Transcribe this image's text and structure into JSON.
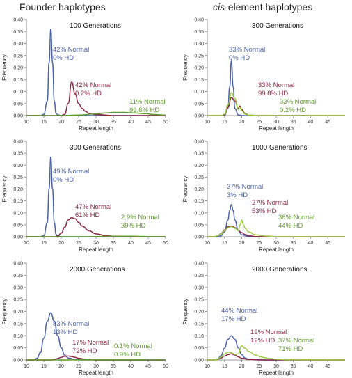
{
  "columns": {
    "left_title": "Founder haplotypes",
    "right_title_italic": "cis",
    "right_title_rest": "-element haplotypes"
  },
  "colors": {
    "blue": "#4a62a8",
    "red": "#8b2540",
    "green": "#5e9a2c",
    "light_green": "#9ccb44"
  },
  "chart_data": [
    {
      "type": "line",
      "title": "100 Generations",
      "xlabel": "Repeat length",
      "ylabel": "Frequency",
      "xlim": [
        10,
        50
      ],
      "ylim": [
        0,
        0.4
      ],
      "xticks": [
        10,
        15,
        20,
        25,
        30,
        35,
        40,
        45,
        50
      ],
      "yticks": [
        "0.00",
        "0.05",
        "0.10",
        "0.15",
        "0.20",
        "0.25",
        "0.30",
        "0.35",
        "0.40"
      ],
      "series": [
        {
          "color": "#4a62a8",
          "x": [
            10,
            14,
            15,
            16,
            16.5,
            17,
            17.5,
            18,
            18.5,
            19,
            20,
            25,
            50
          ],
          "y": [
            0,
            0,
            0.005,
            0.06,
            0.22,
            0.36,
            0.22,
            0.06,
            0.01,
            0.003,
            0,
            0,
            0
          ]
        },
        {
          "color": "#8b2540",
          "x": [
            10,
            20,
            21,
            22,
            23,
            24,
            25,
            26,
            27,
            28,
            30,
            35,
            50
          ],
          "y": [
            0,
            0,
            0.005,
            0.05,
            0.14,
            0.09,
            0.05,
            0.03,
            0.017,
            0.009,
            0.004,
            0,
            0
          ]
        },
        {
          "color": "#5e9a2c",
          "x": [
            10,
            20,
            25,
            30,
            33,
            35,
            38,
            41,
            44,
            47,
            50
          ],
          "y": [
            0,
            0,
            0.002,
            0.007,
            0.011,
            0.013,
            0.013,
            0.011,
            0.008,
            0.004,
            0.002
          ]
        }
      ],
      "annotations": [
        {
          "lines": [
            "42% Normal",
            "0% HD"
          ],
          "color": "#4a62a8"
        },
        {
          "lines": [
            "42% Normal",
            "0.2% HD"
          ],
          "color": "#8b2540"
        },
        {
          "lines": [
            "11% Normal",
            "99.8% HD"
          ],
          "color": "#5e9a2c"
        }
      ]
    },
    {
      "type": "line",
      "title": "300 Generations",
      "xlabel": "Repeat length",
      "ylabel": "Frequency",
      "xlim": [
        10,
        50
      ],
      "ylim": [
        0,
        0.4
      ],
      "xticks": [
        10,
        15,
        20,
        25,
        30,
        35,
        40,
        45
      ],
      "yticks": [
        "0.00",
        "0.05",
        "0.10",
        "0.15",
        "0.20",
        "0.25",
        "0.30",
        "0.35",
        "0.40"
      ],
      "series": [
        {
          "color": "#4a62a8",
          "x": [
            10,
            14,
            15,
            16,
            16.5,
            17,
            17.5,
            18,
            19,
            20,
            25,
            50
          ],
          "y": [
            0,
            0,
            0.002,
            0.03,
            0.12,
            0.23,
            0.12,
            0.03,
            0.003,
            0,
            0,
            0
          ]
        },
        {
          "color": "#8b2540",
          "x": [
            10,
            14,
            15,
            16,
            17,
            18,
            19,
            19.5,
            20,
            21,
            22,
            25,
            50
          ],
          "y": [
            0,
            0,
            0.004,
            0.035,
            0.075,
            0.06,
            0.03,
            0.04,
            0.025,
            0.008,
            0.002,
            0,
            0
          ]
        },
        {
          "color": "#9ccb44",
          "x": [
            10,
            14,
            15,
            16,
            17,
            18,
            19,
            19.5,
            20,
            21,
            22,
            25,
            50
          ],
          "y": [
            0,
            0,
            0.006,
            0.045,
            0.095,
            0.07,
            0.025,
            0.035,
            0.02,
            0.006,
            0.002,
            0,
            0
          ]
        }
      ],
      "annotations": [
        {
          "lines": [
            "33% Normal",
            "0% HD"
          ],
          "color": "#4a62a8"
        },
        {
          "lines": [
            "33% Normal",
            "99.8% HD"
          ],
          "color": "#8b2540"
        },
        {
          "lines": [
            "33% Normal",
            "0.2% HD"
          ],
          "color": "#5e9a2c"
        }
      ]
    },
    {
      "type": "line",
      "title": "300 Generations",
      "xlabel": "Repeat length",
      "ylabel": "Frequency",
      "xlim": [
        10,
        50
      ],
      "ylim": [
        0,
        0.4
      ],
      "xticks": [
        10,
        15,
        20,
        25,
        30,
        35,
        40,
        45,
        50
      ],
      "yticks": [
        "0.00",
        "0.05",
        "0.10",
        "0.15",
        "0.20",
        "0.25",
        "0.30",
        "0.35",
        "0.40"
      ],
      "series": [
        {
          "color": "#4a62a8",
          "x": [
            10,
            14,
            15,
            16,
            16.5,
            17,
            17.5,
            18,
            18.5,
            19,
            20,
            25,
            50
          ],
          "y": [
            0,
            0,
            0.005,
            0.06,
            0.2,
            0.335,
            0.2,
            0.06,
            0.01,
            0.003,
            0,
            0,
            0
          ]
        },
        {
          "color": "#8b2540",
          "x": [
            10,
            18,
            19,
            20,
            21,
            22,
            23,
            24,
            25,
            26,
            28,
            30,
            33,
            36,
            50
          ],
          "y": [
            0,
            0,
            0.003,
            0.015,
            0.04,
            0.07,
            0.08,
            0.075,
            0.06,
            0.045,
            0.025,
            0.012,
            0.004,
            0.001,
            0
          ]
        },
        {
          "color": "#5e9a2c",
          "x": [
            10,
            25,
            30,
            35,
            40,
            45,
            50
          ],
          "y": [
            0,
            0,
            0.001,
            0.002,
            0.002,
            0.001,
            0.001
          ]
        }
      ],
      "annotations": [
        {
          "lines": [
            "49% Normal",
            "0% HD"
          ],
          "color": "#4a62a8"
        },
        {
          "lines": [
            "47% Normal",
            "61% HD"
          ],
          "color": "#8b2540"
        },
        {
          "lines": [
            "2.9% Normal",
            "39% HD"
          ],
          "color": "#5e9a2c"
        }
      ]
    },
    {
      "type": "line",
      "title": "1000 Generations",
      "xlabel": "Repeat length",
      "ylabel": "Frequency",
      "xlim": [
        10,
        50
      ],
      "ylim": [
        0,
        0.4
      ],
      "xticks": [
        10,
        15,
        20,
        25,
        30,
        35,
        40,
        45
      ],
      "yticks": [
        "0.00",
        "0.05",
        "0.10",
        "0.15",
        "0.20",
        "0.25",
        "0.30",
        "0.35",
        "0.40"
      ],
      "series": [
        {
          "color": "#4a62a8",
          "x": [
            10,
            13,
            14,
            15,
            16,
            16.5,
            17,
            17.5,
            18,
            19,
            20,
            22,
            25,
            50
          ],
          "y": [
            0,
            0,
            0.004,
            0.02,
            0.07,
            0.11,
            0.135,
            0.11,
            0.07,
            0.025,
            0.008,
            0.001,
            0,
            0
          ]
        },
        {
          "color": "#8b2540",
          "x": [
            10,
            12,
            13,
            14,
            15,
            16,
            17,
            18,
            19,
            20,
            21,
            22,
            24,
            27,
            50
          ],
          "y": [
            0,
            0,
            0.004,
            0.013,
            0.028,
            0.042,
            0.045,
            0.038,
            0.025,
            0.017,
            0.009,
            0.004,
            0.001,
            0,
            0
          ]
        },
        {
          "color": "#9ccb44",
          "x": [
            10,
            12,
            13,
            14,
            15,
            16,
            17,
            18,
            19,
            19.5,
            20,
            20.5,
            21,
            22,
            24,
            27,
            30,
            50
          ],
          "y": [
            0,
            0,
            0.004,
            0.012,
            0.025,
            0.038,
            0.042,
            0.035,
            0.025,
            0.05,
            0.07,
            0.05,
            0.035,
            0.02,
            0.008,
            0.003,
            0.001,
            0
          ]
        }
      ],
      "annotations": [
        {
          "lines": [
            "37% Normal",
            "3% HD"
          ],
          "color": "#4a62a8"
        },
        {
          "lines": [
            "27% Normal",
            "53% HD"
          ],
          "color": "#8b2540"
        },
        {
          "lines": [
            "36% Normal",
            "44% HD"
          ],
          "color": "#5e9a2c"
        }
      ]
    },
    {
      "type": "line",
      "title": "2000 Generations",
      "xlabel": "Repeat length",
      "ylabel": "Frequency",
      "xlim": [
        10,
        50
      ],
      "ylim": [
        0,
        0.4
      ],
      "xticks": [
        10,
        15,
        20,
        25,
        30,
        35,
        40,
        45,
        50
      ],
      "yticks": [
        "0.00",
        "0.05",
        "0.10",
        "0.15",
        "0.20",
        "0.25",
        "0.30",
        "0.35",
        "0.40"
      ],
      "series": [
        {
          "color": "#4a62a8",
          "x": [
            10,
            12,
            13,
            14,
            15,
            16,
            17,
            18,
            19,
            20,
            21,
            22,
            24,
            26,
            30,
            50
          ],
          "y": [
            0,
            0,
            0.006,
            0.03,
            0.09,
            0.16,
            0.195,
            0.16,
            0.1,
            0.05,
            0.02,
            0.008,
            0.002,
            0,
            0,
            0
          ]
        },
        {
          "color": "#8b2540",
          "x": [
            10,
            17,
            18,
            19,
            20,
            21,
            22,
            23,
            24,
            25,
            27,
            30,
            50
          ],
          "y": [
            0,
            0,
            0.002,
            0.006,
            0.011,
            0.015,
            0.016,
            0.014,
            0.011,
            0.007,
            0.003,
            0,
            0
          ]
        },
        {
          "color": "#5e9a2c",
          "x": [
            10,
            20,
            30,
            40,
            50
          ],
          "y": [
            0,
            0,
            0.001,
            0.001,
            0
          ]
        }
      ],
      "annotations": [
        {
          "lines": [
            "83% Normal",
            "13% HD"
          ],
          "color": "#4a62a8"
        },
        {
          "lines": [
            "17% Normal",
            "72% HD"
          ],
          "color": "#8b2540"
        },
        {
          "lines": [
            "0.1% Normal",
            "0.9% HD"
          ],
          "color": "#5e9a2c"
        }
      ]
    },
    {
      "type": "line",
      "title": "2000 Generations",
      "xlabel": "Repeat length",
      "ylabel": "Frequency",
      "xlim": [
        10,
        50
      ],
      "ylim": [
        0,
        0.4
      ],
      "xticks": [
        10,
        15,
        20,
        25,
        30,
        35,
        40,
        45
      ],
      "yticks": [
        "0.00",
        "0.05",
        "0.10",
        "0.15",
        "0.20",
        "0.25",
        "0.30",
        "0.35",
        "0.40"
      ],
      "series": [
        {
          "color": "#4a62a8",
          "x": [
            10,
            12,
            13,
            14,
            15,
            16,
            17,
            18,
            19,
            20,
            21,
            22,
            24,
            27,
            50
          ],
          "y": [
            0,
            0,
            0.004,
            0.018,
            0.048,
            0.085,
            0.1,
            0.085,
            0.05,
            0.022,
            0.008,
            0.003,
            0.001,
            0,
            0
          ]
        },
        {
          "color": "#8b2540",
          "x": [
            10,
            12,
            13,
            14,
            15,
            16,
            17,
            18,
            19,
            20,
            22,
            25,
            50
          ],
          "y": [
            0,
            0,
            0.002,
            0.008,
            0.016,
            0.022,
            0.025,
            0.02,
            0.013,
            0.007,
            0.002,
            0,
            0
          ]
        },
        {
          "color": "#9ccb44",
          "x": [
            10,
            12,
            13,
            14,
            15,
            16,
            17,
            18,
            19,
            20,
            21,
            22,
            24,
            26,
            28,
            30,
            33,
            50
          ],
          "y": [
            0,
            0,
            0.003,
            0.012,
            0.025,
            0.032,
            0.03,
            0.022,
            0.025,
            0.058,
            0.048,
            0.035,
            0.02,
            0.011,
            0.006,
            0.003,
            0.001,
            0
          ]
        }
      ],
      "annotations": [
        {
          "lines": [
            "44% Normal",
            "17% HD"
          ],
          "color": "#4a62a8"
        },
        {
          "lines": [
            "19% Normal",
            "12% HD"
          ],
          "color": "#8b2540"
        },
        {
          "lines": [
            "37% Normal",
            "71% HD"
          ],
          "color": "#5e9a2c"
        }
      ]
    }
  ]
}
